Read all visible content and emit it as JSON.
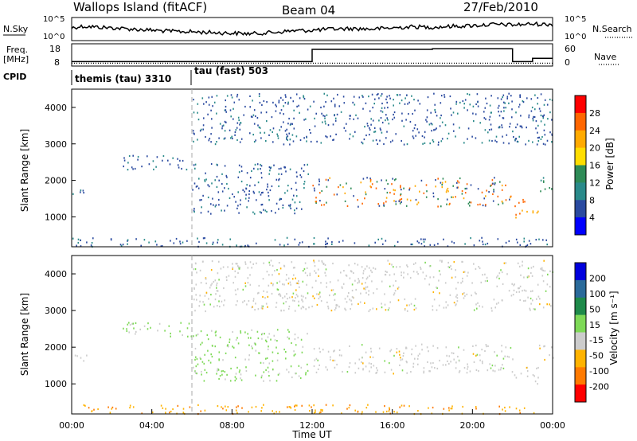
{
  "header": {
    "station": "Wallops Island (fitACF)",
    "beam": "Beam 04",
    "date": "27/Feb/2010"
  },
  "top_panels": {
    "nsky_label": "N.Sky",
    "nsky_ticks": [
      "10^5",
      "10^0"
    ],
    "nsearch_label": "N.Search",
    "nsearch_ticks": [
      "10^5",
      "10^0"
    ],
    "freq_label": "Freq.",
    "freq_unit": "[MHz]",
    "freq_ticks": [
      "18",
      "8"
    ],
    "nave_label": "Nave",
    "nave_ticks": [
      "60",
      "0"
    ],
    "cpid_label": "CPID",
    "cpid_modes": [
      {
        "text": "themis (tau) 3310",
        "start_hour": 0
      },
      {
        "text": "tau (fast) 503",
        "start_hour": 6
      }
    ]
  },
  "chart_data": [
    {
      "type": "line",
      "panel": "nsky-nsearch",
      "description_series": [
        {
          "name": "N.Sky",
          "style": "solid"
        },
        {
          "name": "N.Search",
          "style": "dotted"
        }
      ],
      "x_hours": [
        0,
        0.3,
        0.6,
        1,
        2,
        3,
        4,
        5,
        6,
        7,
        8,
        9,
        10,
        11,
        12,
        13,
        14,
        15,
        16,
        17,
        18,
        19,
        20,
        21,
        22,
        23,
        24
      ],
      "y_fraction": [
        0.55,
        0.6,
        0.62,
        0.6,
        0.55,
        0.5,
        0.45,
        0.4,
        0.38,
        0.35,
        0.32,
        0.3,
        0.35,
        0.42,
        0.45,
        0.5,
        0.52,
        0.5,
        0.55,
        0.6,
        0.58,
        0.62,
        0.65,
        0.7,
        0.68,
        0.72,
        0.7
      ]
    },
    {
      "type": "line",
      "panel": "freq-nave",
      "series": [
        {
          "name": "Freq.",
          "style": "solid",
          "x_hours": [
            0,
            12,
            12,
            18,
            18,
            22,
            22,
            23,
            23,
            24
          ],
          "y_mhz": [
            10,
            10,
            15.5,
            15.5,
            15.8,
            15.8,
            10,
            10,
            11.5,
            11.5
          ]
        },
        {
          "name": "Nave",
          "style": "dotted",
          "x_hours": [
            0,
            24
          ],
          "y": [
            10,
            10
          ]
        }
      ],
      "ylim": [
        8,
        18
      ]
    },
    {
      "type": "heatmap",
      "panel": "power",
      "ylabel": "Slant Range [km]",
      "ylim": [
        180,
        4500
      ],
      "yticks": [
        1000,
        2000,
        3000,
        4000
      ],
      "xlim_hours": [
        0,
        24
      ],
      "colorbar_label": "Power [dB]",
      "colorbar_ticks": [
        "28",
        "24",
        "20",
        "16",
        "12",
        "8",
        "4"
      ],
      "colorbar_colors": [
        "#ff0000",
        "#ff6600",
        "#ffaa00",
        "#ffdd00",
        "#2e8b57",
        "#2a8a8a",
        "#2a4aa0",
        "#0000ff"
      ],
      "scatter_bands": [
        {
          "x0": 0.0,
          "x1": 0.8,
          "y0": 1600,
          "y1": 1900,
          "level": 8
        },
        {
          "x0": 2.5,
          "x1": 6.0,
          "y0": 2300,
          "y1": 2700,
          "level": 6
        },
        {
          "x0": 6.0,
          "x1": 11.8,
          "y0": 1100,
          "y1": 2500,
          "level": 6
        },
        {
          "x0": 12.0,
          "x1": 22.0,
          "y0": 1300,
          "y1": 2100,
          "level": 20
        },
        {
          "x0": 22.0,
          "x1": 23.3,
          "y0": 1000,
          "y1": 1500,
          "level": 24
        },
        {
          "x0": 23.3,
          "x1": 24.0,
          "y0": 1600,
          "y1": 2100,
          "level": 12
        },
        {
          "x0": 0.0,
          "x1": 24.0,
          "y0": 200,
          "y1": 450,
          "level": 8
        },
        {
          "x0": 6.0,
          "x1": 24.0,
          "y0": 3000,
          "y1": 4400,
          "level": 4
        }
      ]
    },
    {
      "type": "heatmap",
      "panel": "velocity",
      "ylabel": "Slant Range [km]",
      "xlabel": "Time UT",
      "ylim": [
        180,
        4500
      ],
      "yticks": [
        1000,
        2000,
        3000,
        4000
      ],
      "xlim_hours": [
        0,
        24
      ],
      "xticks": [
        "00:00",
        "04:00",
        "08:00",
        "12:00",
        "16:00",
        "20:00",
        "00:00"
      ],
      "colorbar_label": "Velocity [m s⁻¹]",
      "colorbar_ticks": [
        "200",
        "100",
        "50",
        "15",
        "-15",
        "-50",
        "-100",
        "-200"
      ],
      "colorbar_colors": [
        "#0000dd",
        "#2a6a9a",
        "#1e8a4a",
        "#7ed957",
        "#cccccc",
        "#ffb300",
        "#ff7a00",
        "#ff0000"
      ],
      "scatter_bands": [
        {
          "x0": 0.0,
          "x1": 0.8,
          "y0": 1600,
          "y1": 1900,
          "velocity": 0
        },
        {
          "x0": 2.5,
          "x1": 6.0,
          "y0": 2300,
          "y1": 2700,
          "velocity": 30
        },
        {
          "x0": 6.0,
          "x1": 11.8,
          "y0": 1100,
          "y1": 2500,
          "velocity": 40
        },
        {
          "x0": 12.0,
          "x1": 22.0,
          "y0": 1300,
          "y1": 2100,
          "velocity": 0
        },
        {
          "x0": 22.0,
          "x1": 23.3,
          "y0": 1000,
          "y1": 1500,
          "velocity": 0
        },
        {
          "x0": 23.3,
          "x1": 24.0,
          "y0": 1600,
          "y1": 2100,
          "velocity": 0
        },
        {
          "x0": 0.0,
          "x1": 24.0,
          "y0": 200,
          "y1": 450,
          "velocity": -40
        },
        {
          "x0": 6.0,
          "x1": 24.0,
          "y0": 3000,
          "y1": 4400,
          "velocity": 0
        }
      ]
    }
  ]
}
